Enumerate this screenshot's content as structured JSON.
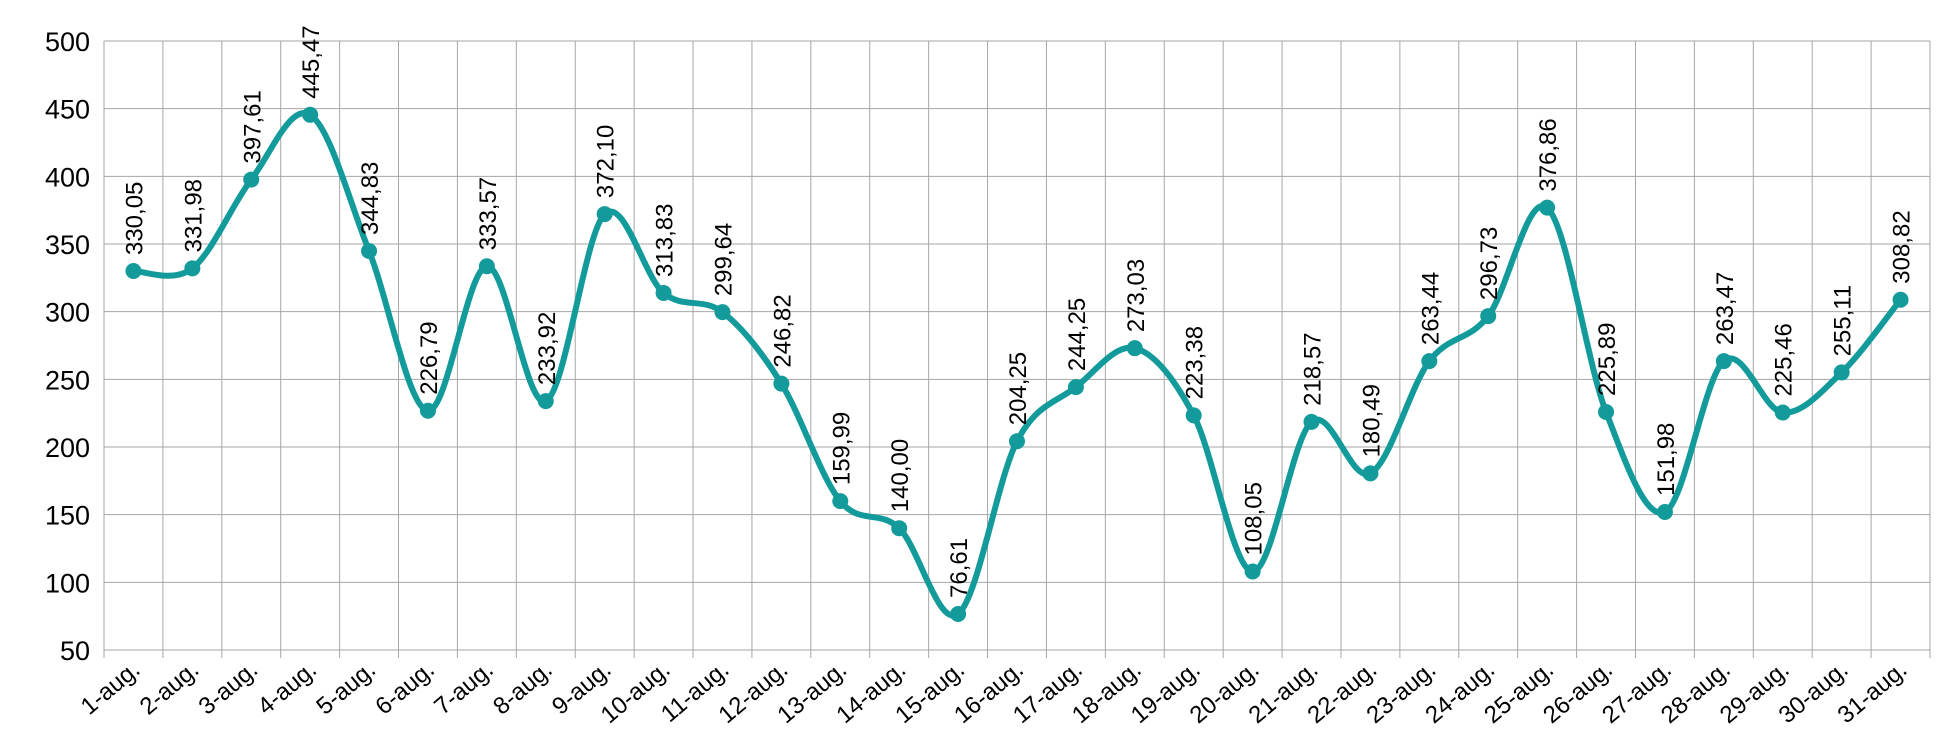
{
  "chart_data": {
    "type": "line",
    "smooth": true,
    "categories": [
      "1-aug.",
      "2-aug.",
      "3-aug.",
      "4-aug.",
      "5-aug.",
      "6-aug.",
      "7-aug.",
      "8-aug.",
      "9-aug.",
      "10-aug.",
      "11-aug.",
      "12-aug.",
      "13-aug.",
      "14-aug.",
      "15-aug.",
      "16-aug.",
      "17-aug.",
      "18-aug.",
      "19-aug.",
      "20-aug.",
      "21-aug.",
      "22-aug.",
      "23-aug.",
      "24-aug.",
      "25-aug.",
      "26-aug.",
      "27-aug.",
      "28-aug.",
      "29-aug.",
      "30-aug.",
      "31-aug."
    ],
    "values": [
      330.05,
      331.98,
      397.61,
      445.47,
      344.83,
      226.79,
      333.57,
      233.92,
      372.1,
      313.83,
      299.64,
      246.82,
      159.99,
      140.0,
      76.61,
      204.25,
      244.25,
      273.03,
      223.38,
      108.05,
      218.57,
      180.49,
      263.44,
      296.73,
      376.86,
      225.89,
      151.98,
      263.47,
      225.46,
      255.11,
      308.82
    ],
    "data_labels": [
      "330,05",
      "331,98",
      "397,61",
      "445,47",
      "344,83",
      "226,79",
      "333,57",
      "233,92",
      "372,10",
      "313,83",
      "299,64",
      "246,82",
      "159,99",
      "140,00",
      "76,61",
      "204,25",
      "244,25",
      "273,03",
      "223,38",
      "108,05",
      "218,57",
      "180,49",
      "263,44",
      "296,73",
      "376,86",
      "225,89",
      "151,98",
      "263,47",
      "225,46",
      "255,11",
      "308,82"
    ],
    "yticks": [
      "50",
      "100",
      "150",
      "200",
      "250",
      "300",
      "350",
      "400",
      "450",
      "500"
    ],
    "ylim": [
      50,
      500
    ],
    "grid": true,
    "legend": "none",
    "series_color": "#139a9a"
  }
}
